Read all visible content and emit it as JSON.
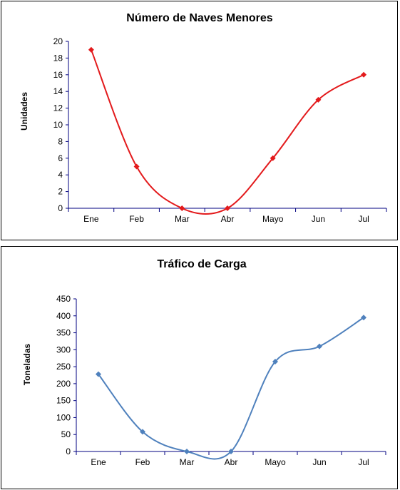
{
  "chart_data": [
    {
      "type": "line",
      "title": "Número de Naves Menores",
      "xlabel": "",
      "ylabel": "Unidades",
      "categories": [
        "Ene",
        "Feb",
        "Mar",
        "Abr",
        "Mayo",
        "Jun",
        "Jul"
      ],
      "series": [
        {
          "values": [
            19,
            5,
            0,
            0,
            6,
            13,
            16
          ],
          "color": "#e31a1c",
          "marker": "diamond",
          "smooth": true
        }
      ],
      "ylim": [
        0,
        20
      ],
      "yticks": [
        0,
        2,
        4,
        6,
        8,
        10,
        12,
        14,
        16,
        18,
        20
      ],
      "grid": false,
      "axis_color": "#000080"
    },
    {
      "type": "line",
      "title": "Tráfico de Carga",
      "xlabel": "",
      "ylabel": "Toneladas",
      "categories": [
        "Ene",
        "Feb",
        "Mar",
        "Abr",
        "Mayo",
        "Jun",
        "Jul"
      ],
      "series": [
        {
          "values": [
            228,
            58,
            0,
            0,
            265,
            310,
            395
          ],
          "color": "#4f81bd",
          "marker": "diamond",
          "smooth": true
        }
      ],
      "ylim": [
        0,
        450
      ],
      "yticks": [
        0,
        50,
        100,
        150,
        200,
        250,
        300,
        350,
        400,
        450
      ],
      "grid": false,
      "axis_color": "#000080"
    }
  ]
}
